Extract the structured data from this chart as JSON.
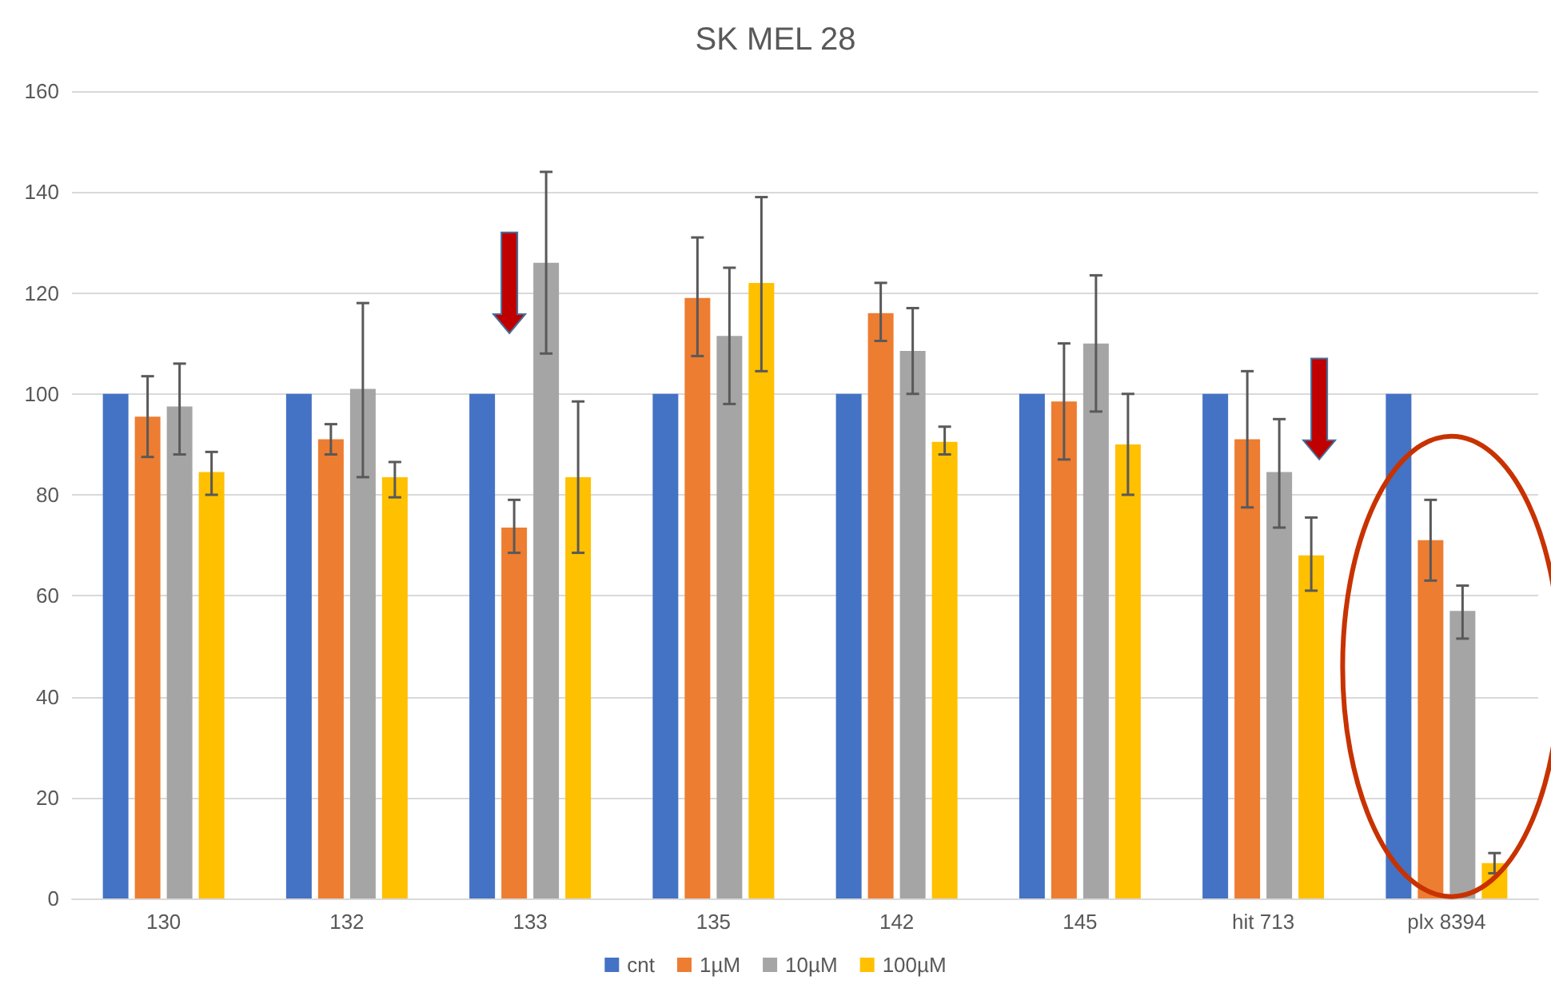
{
  "chart_data": {
    "type": "bar",
    "title": "SK MEL 28",
    "categories": [
      "130",
      "132",
      "133",
      "135",
      "142",
      "145",
      "hit 713",
      "plx 8394"
    ],
    "series": [
      {
        "name": "cnt",
        "color": "#4472c4",
        "values": [
          100,
          100,
          100,
          100,
          100,
          100,
          100,
          100
        ]
      },
      {
        "name": "1µM",
        "color": "#ed7d31",
        "values": [
          95.5,
          91,
          73.5,
          119,
          116,
          98.5,
          91,
          71
        ],
        "errors": [
          [
            87.5,
            103.5
          ],
          [
            88,
            94
          ],
          [
            68.5,
            79
          ],
          [
            107.5,
            131
          ],
          [
            110.5,
            122
          ],
          [
            87,
            110
          ],
          [
            77.5,
            104.5
          ],
          [
            63,
            79
          ]
        ]
      },
      {
        "name": "10µM",
        "color": "#a5a5a5",
        "values": [
          97.5,
          101,
          126,
          111.5,
          108.5,
          110,
          84.5,
          57
        ],
        "errors": [
          [
            88,
            106
          ],
          [
            83.5,
            118
          ],
          [
            108,
            144
          ],
          [
            98,
            125
          ],
          [
            100,
            117
          ],
          [
            96.5,
            123.5
          ],
          [
            73.5,
            95
          ],
          [
            51.5,
            62
          ]
        ]
      },
      {
        "name": "100µM",
        "color": "#ffc000",
        "values": [
          84.5,
          83.5,
          83.5,
          122,
          90.5,
          90,
          68,
          7
        ],
        "errors": [
          [
            80,
            88.5
          ],
          [
            79.5,
            86.5
          ],
          [
            68.5,
            98.5
          ],
          [
            104.5,
            139
          ],
          [
            88,
            93.5
          ],
          [
            80,
            100
          ],
          [
            61,
            75.5
          ],
          [
            5,
            9
          ]
        ]
      }
    ],
    "ylim": [
      0,
      160
    ],
    "yticks": [
      0,
      20,
      40,
      60,
      80,
      100,
      120,
      140,
      160
    ],
    "grid": "y",
    "legend": "bottom"
  }
}
